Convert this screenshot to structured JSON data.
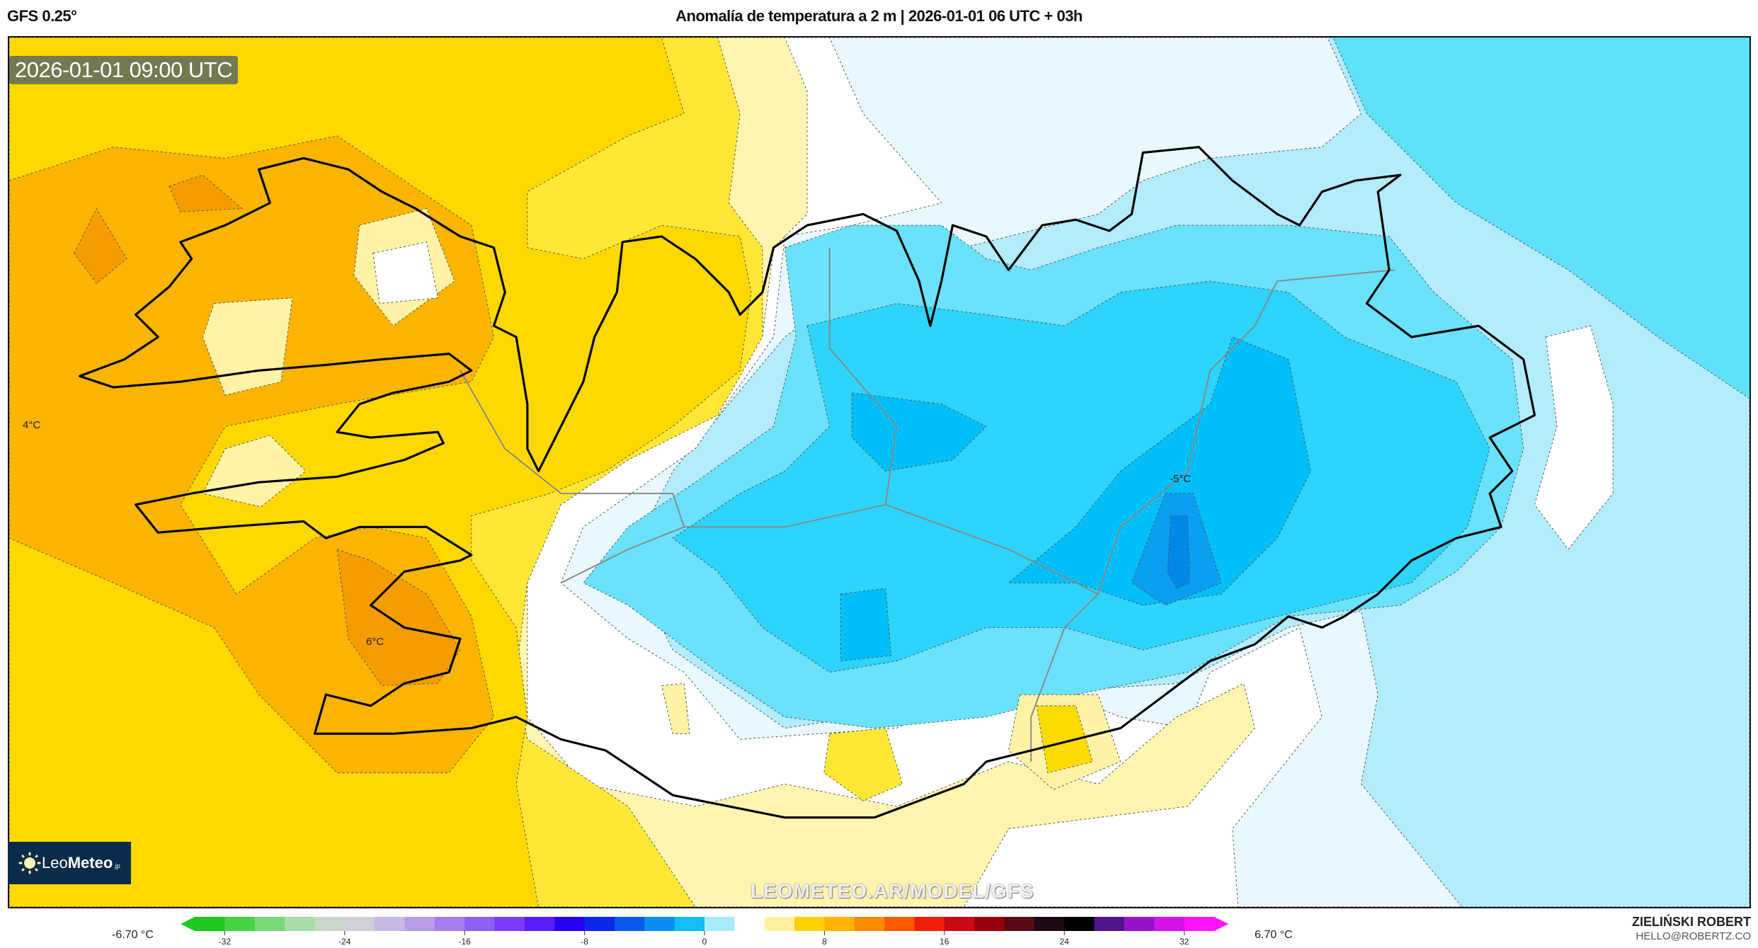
{
  "header": {
    "model": "GFS 0.25°",
    "title": "Anomalía de temperatura a 2 m | 2026-01-01 06 UTC + 03h"
  },
  "map": {
    "valid_time": "2026-01-01 09:00 UTC",
    "labels": [
      "4°C",
      "6°C",
      "-5°C"
    ],
    "watermark": "LEOMETEO.AR/MODEL/GFS",
    "logo": {
      "prefix": "Leo",
      "bold": "Meteo",
      "suffix": ".jp"
    }
  },
  "colorbar": {
    "min_label": "-6.70 °C",
    "max_label": "6.70 °C",
    "range": [
      -34,
      34
    ],
    "ticks": [
      "-32",
      "-24",
      "-16",
      "-8",
      "0",
      "8",
      "16",
      "24",
      "32"
    ],
    "tick_values": [
      -32,
      -24,
      -16,
      -8,
      0,
      8,
      16,
      24,
      32
    ],
    "colors": [
      "#1ec81e",
      "#46d246",
      "#78d878",
      "#a8dca8",
      "#c8d8c8",
      "#d0d0d8",
      "#c8b8e4",
      "#b89cea",
      "#a47ef0",
      "#9060f4",
      "#7a3cf8",
      "#5a1cf8",
      "#2800f0",
      "#0a28e6",
      "#0a5aec",
      "#0a8cf2",
      "#14bcf8",
      "#a8ecfc",
      "#ffffff",
      "#fff0a0",
      "#ffd200",
      "#ffb400",
      "#ff8c00",
      "#ff5a00",
      "#f01e0a",
      "#c80a14",
      "#96000a",
      "#5a0a14",
      "#1e0a14",
      "#000000",
      "#50148c",
      "#9614c8",
      "#d214e6",
      "#ff14ff"
    ]
  },
  "footer": {
    "author": "ZIELIŃSKI ROBERT",
    "email": "HELLO@ROBERTZ.CO"
  }
}
